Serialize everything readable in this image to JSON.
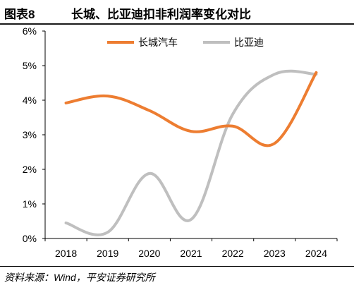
{
  "figure": {
    "label": "图表8",
    "title": "长城、比亚迪扣非利润率变化对比",
    "source": "资料来源：Wind，平安证券研究所"
  },
  "colors": {
    "great_wall": "#ED7D31",
    "byd": "#BFBFBF",
    "axis": "#000000"
  },
  "chart_data": {
    "type": "line",
    "smooth": true,
    "x": [
      "2018",
      "2019",
      "2020",
      "2021",
      "2022",
      "2023",
      "2024"
    ],
    "series": [
      {
        "name": "长城汽车",
        "values": [
          3.92,
          4.12,
          3.7,
          3.1,
          3.25,
          2.75,
          4.8
        ]
      },
      {
        "name": "比亚迪",
        "values": [
          0.45,
          0.18,
          1.88,
          0.55,
          3.6,
          4.75,
          4.75
        ]
      }
    ],
    "yticks": [
      "0%",
      "1%",
      "2%",
      "3%",
      "4%",
      "5%",
      "6%"
    ],
    "ylim": [
      0,
      6
    ],
    "grid": false,
    "legend_position": "top-center"
  }
}
